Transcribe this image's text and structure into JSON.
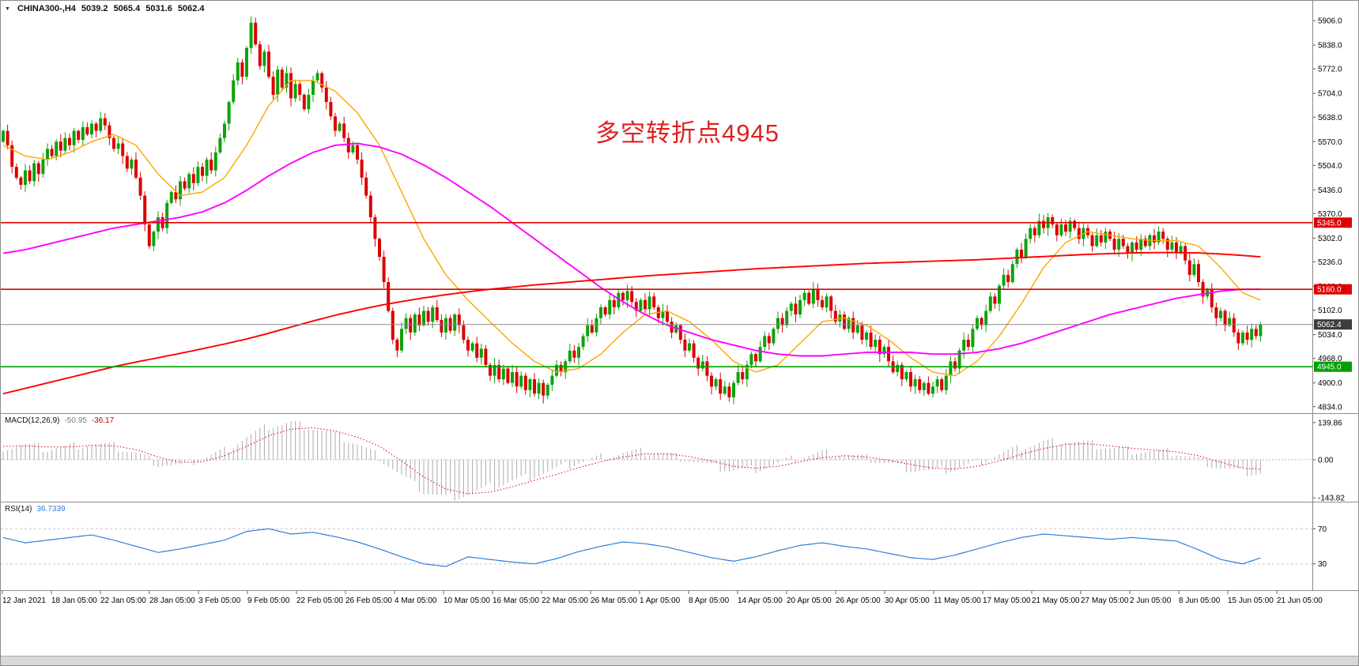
{
  "header": {
    "symbol_tf": "CHINA300-,H4",
    "open": "5039.2",
    "high": "5065.4",
    "low": "5031.6",
    "close": "5062.4"
  },
  "icons": {
    "symbol_dropdown": "▼"
  },
  "macd_header": {
    "label": "MACD(12,26,9)",
    "value_main": "-50.95",
    "value_signal": "-36.17"
  },
  "rsi_header": {
    "label": "RSI(14)",
    "value": "36.7339"
  },
  "annotation": {
    "text": "多空转折点4945",
    "color": "#E02020"
  },
  "colors": {
    "up": "#0CA30C",
    "down": "#DC0000",
    "price_line": "#8A8A8A",
    "separator": "#909090",
    "axis_line": "#888888"
  },
  "chart_data": [
    {
      "type": "candlestick",
      "name": "CHINA300- H4 price panel",
      "panel": "main",
      "bars": 285,
      "price_range": [
        4816,
        5961
      ],
      "y_tick_labels": [
        "5906.0",
        "5838.0",
        "5772.0",
        "5704.0",
        "5638.0",
        "5570.0",
        "5504.0",
        "5436.0",
        "5370.0",
        "5302.0",
        "5236.0",
        "5168.0",
        "5102.0",
        "5034.0",
        "4968.0",
        "4900.0",
        "4834.0"
      ],
      "x_labels": [
        "12 Jan 2021",
        "18 Jan 05:00",
        "22 Jan 05:00",
        "28 Jan 05:00",
        "3 Feb 05:00",
        "9 Feb 05:00",
        "22 Feb 05:00",
        "26 Feb 05:00",
        "4 Mar 05:00",
        "10 Mar 05:00",
        "16 Mar 05:00",
        "22 Mar 05:00",
        "26 Mar 05:00",
        "1 Apr 05:00",
        "8 Apr 05:00",
        "14 Apr 05:00",
        "20 Apr 05:00",
        "26 Apr 05:00",
        "30 Apr 05:00",
        "11 May 05:00",
        "17 May 05:00",
        "21 May 05:00",
        "27 May 05:00",
        "2 Jun 05:00",
        "8 Jun 05:00",
        "15 Jun 05:00",
        "21 Jun 05:00"
      ],
      "closes": [
        5600,
        5560,
        5500,
        5470,
        5450,
        5490,
        5460,
        5510,
        5480,
        5520,
        5550,
        5530,
        5570,
        5545,
        5580,
        5560,
        5600,
        5575,
        5610,
        5590,
        5620,
        5600,
        5635,
        5615,
        5580,
        5550,
        5565,
        5530,
        5495,
        5520,
        5470,
        5420,
        5340,
        5280,
        5320,
        5360,
        5330,
        5400,
        5430,
        5410,
        5460,
        5440,
        5480,
        5455,
        5500,
        5475,
        5520,
        5490,
        5540,
        5580,
        5620,
        5680,
        5740,
        5790,
        5750,
        5830,
        5900,
        5840,
        5780,
        5820,
        5750,
        5700,
        5770,
        5720,
        5760,
        5690,
        5730,
        5700,
        5660,
        5700,
        5740,
        5760,
        5720,
        5680,
        5640,
        5600,
        5620,
        5580,
        5540,
        5560,
        5520,
        5470,
        5420,
        5360,
        5300,
        5250,
        5180,
        5100,
        5020,
        4990,
        5050,
        5080,
        5040,
        5090,
        5060,
        5100,
        5070,
        5110,
        5075,
        5040,
        5080,
        5045,
        5090,
        5060,
        5020,
        4990,
        5010,
        4970,
        4995,
        4950,
        4920,
        4950,
        4910,
        4940,
        4900,
        4930,
        4890,
        4920,
        4880,
        4910,
        4870,
        4900,
        4865,
        4895,
        4920,
        4950,
        4930,
        4960,
        4990,
        4970,
        5000,
        5030,
        5060,
        5040,
        5080,
        5110,
        5090,
        5130,
        5110,
        5150,
        5130,
        5155,
        5125,
        5100,
        5130,
        5105,
        5140,
        5110,
        5080,
        5100,
        5070,
        5040,
        5060,
        5020,
        4990,
        5010,
        4970,
        4940,
        4960,
        4920,
        4890,
        4910,
        4870,
        4890,
        4860,
        4900,
        4930,
        4910,
        4950,
        4980,
        4960,
        5000,
        5030,
        5010,
        5050,
        5080,
        5060,
        5100,
        5120,
        5090,
        5130,
        5150,
        5120,
        5160,
        5130,
        5110,
        5140,
        5100,
        5070,
        5090,
        5050,
        5080,
        5040,
        5060,
        5020,
        5040,
        5000,
        5020,
        4980,
        5000,
        4960,
        4930,
        4950,
        4910,
        4930,
        4890,
        4910,
        4880,
        4900,
        4870,
        4890,
        4910,
        4880,
        4920,
        4960,
        4940,
        4990,
        5020,
        5000,
        5050,
        5080,
        5060,
        5100,
        5140,
        5120,
        5170,
        5200,
        5180,
        5230,
        5270,
        5250,
        5300,
        5330,
        5310,
        5350,
        5330,
        5360,
        5340,
        5310,
        5340,
        5320,
        5350,
        5330,
        5300,
        5330,
        5310,
        5280,
        5310,
        5290,
        5320,
        5300,
        5270,
        5300,
        5280,
        5260,
        5290,
        5270,
        5300,
        5280,
        5310,
        5290,
        5320,
        5300,
        5270,
        5290,
        5260,
        5280,
        5240,
        5200,
        5230,
        5180,
        5140,
        5160,
        5110,
        5080,
        5100,
        5060,
        5080,
        5040,
        5010,
        5040,
        5020,
        5050,
        5030,
        5062.4
      ],
      "current_price": 5062.4,
      "hlines": [
        {
          "price": 5345,
          "color": "#E00000",
          "label": "5345.0"
        },
        {
          "price": 5160,
          "color": "#E00000",
          "label": "5160.0"
        },
        {
          "price": 4945,
          "color": "#00A000",
          "label": "4945.0"
        }
      ],
      "price_badges": [
        {
          "label": "5345.0",
          "price": 5345,
          "bg": "#E00000"
        },
        {
          "label": "5160.0",
          "price": 5160,
          "bg": "#E00000"
        },
        {
          "label": "5062.4",
          "price": 5062.4,
          "bg": "#3C3C3C"
        },
        {
          "label": "4945.0",
          "price": 4945,
          "bg": "#00A000"
        }
      ],
      "moving_averages": [
        {
          "name": "ma-fast",
          "color": "#FFA500",
          "step": 5,
          "last": 5130,
          "values": [
            5560,
            5530,
            5520,
            5540,
            5570,
            5590,
            5560,
            5480,
            5420,
            5430,
            5470,
            5560,
            5670,
            5740,
            5740,
            5710,
            5650,
            5560,
            5430,
            5300,
            5200,
            5130,
            5070,
            5010,
            4960,
            4930,
            4940,
            4980,
            5040,
            5090,
            5100,
            5070,
            5020,
            4960,
            4930,
            4950,
            5010,
            5070,
            5080,
            5060,
            5020,
            4970,
            4930,
            4920,
            4960,
            5030,
            5120,
            5220,
            5290,
            5320,
            5310,
            5300,
            5295,
            5295,
            5280,
            5220,
            5150
          ]
        },
        {
          "name": "ma-mid",
          "color": "#FF00FF",
          "step": 5,
          "last": 5160,
          "values": [
            5260,
            5270,
            5285,
            5300,
            5315,
            5330,
            5340,
            5350,
            5360,
            5375,
            5400,
            5435,
            5475,
            5510,
            5540,
            5560,
            5565,
            5555,
            5535,
            5505,
            5470,
            5430,
            5390,
            5345,
            5300,
            5255,
            5210,
            5165,
            5125,
            5090,
            5060,
            5040,
            5020,
            5005,
            4990,
            4980,
            4975,
            4975,
            4980,
            4985,
            4985,
            4985,
            4980,
            4980,
            4985,
            4995,
            5010,
            5030,
            5050,
            5070,
            5090,
            5105,
            5120,
            5135,
            5145,
            5155,
            5160
          ]
        },
        {
          "name": "ma-slow",
          "color": "#FF0000",
          "step": 5,
          "last": 5250,
          "values": [
            4870,
            4885,
            4900,
            4915,
            4930,
            4945,
            4958,
            4970,
            4982,
            4995,
            5008,
            5022,
            5038,
            5055,
            5072,
            5088,
            5102,
            5115,
            5126,
            5136,
            5145,
            5153,
            5160,
            5166,
            5172,
            5177,
            5182,
            5187,
            5192,
            5197,
            5201,
            5205,
            5209,
            5213,
            5217,
            5220,
            5223,
            5226,
            5229,
            5232,
            5234,
            5236,
            5238,
            5240,
            5242,
            5245,
            5248,
            5251,
            5254,
            5257,
            5259,
            5261,
            5262,
            5262,
            5261,
            5258,
            5254
          ]
        }
      ],
      "annotation": {
        "text": "多空转折点4945",
        "color": "#E02020"
      }
    },
    {
      "type": "bar",
      "name": "MACD(12,26,9)",
      "panel": "macd",
      "range": [
        -158,
        172
      ],
      "tick_labels": [
        "139.86",
        "0.00",
        "-143.82"
      ],
      "tick_values": [
        139.86,
        0,
        -143.82
      ],
      "step": 5,
      "histogram_last": -50.95,
      "signal_last": -36.17,
      "colors": {
        "histogram": "#ABABAB",
        "signal": "#E00000"
      },
      "histogram": [
        45,
        55,
        40,
        50,
        60,
        50,
        25,
        -15,
        -25,
        5,
        35,
        85,
        125,
        139,
        120,
        95,
        60,
        10,
        -60,
        -120,
        -143,
        -130,
        -105,
        -80,
        -60,
        -35,
        -10,
        10,
        25,
        30,
        20,
        0,
        -25,
        -40,
        -35,
        -15,
        10,
        25,
        20,
        5,
        -15,
        -35,
        -45,
        -35,
        -10,
        20,
        45,
        65,
        70,
        60,
        45,
        35,
        30,
        25,
        0,
        -30,
        -48
      ],
      "signal": [
        50,
        52,
        48,
        48,
        54,
        52,
        38,
        10,
        -10,
        -8,
        15,
        50,
        90,
        115,
        120,
        108,
        85,
        50,
        -5,
        -65,
        -110,
        -128,
        -122,
        -102,
        -78,
        -55,
        -30,
        -8,
        10,
        22,
        22,
        12,
        -5,
        -25,
        -32,
        -25,
        -8,
        8,
        15,
        10,
        -2,
        -18,
        -32,
        -35,
        -25,
        -5,
        20,
        42,
        58,
        60,
        52,
        43,
        36,
        30,
        15,
        -10,
        -32
      ]
    },
    {
      "type": "line",
      "name": "RSI(14)",
      "panel": "rsi",
      "range": [
        0,
        100
      ],
      "levels": [
        70,
        30
      ],
      "level_labels": [
        "70",
        "30"
      ],
      "step": 5,
      "last": 36.7339,
      "color": "#2E7FD8",
      "values": [
        60,
        54,
        57,
        60,
        63,
        57,
        50,
        43,
        47,
        52,
        57,
        67,
        70,
        64,
        66,
        61,
        55,
        47,
        38,
        30,
        27,
        38,
        35,
        32,
        30,
        36,
        44,
        50,
        55,
        53,
        49,
        43,
        37,
        33,
        38,
        45,
        51,
        54,
        50,
        47,
        42,
        37,
        35,
        40,
        47,
        54,
        60,
        64,
        62,
        60,
        58,
        60,
        58,
        56,
        46,
        35,
        30
      ]
    }
  ]
}
